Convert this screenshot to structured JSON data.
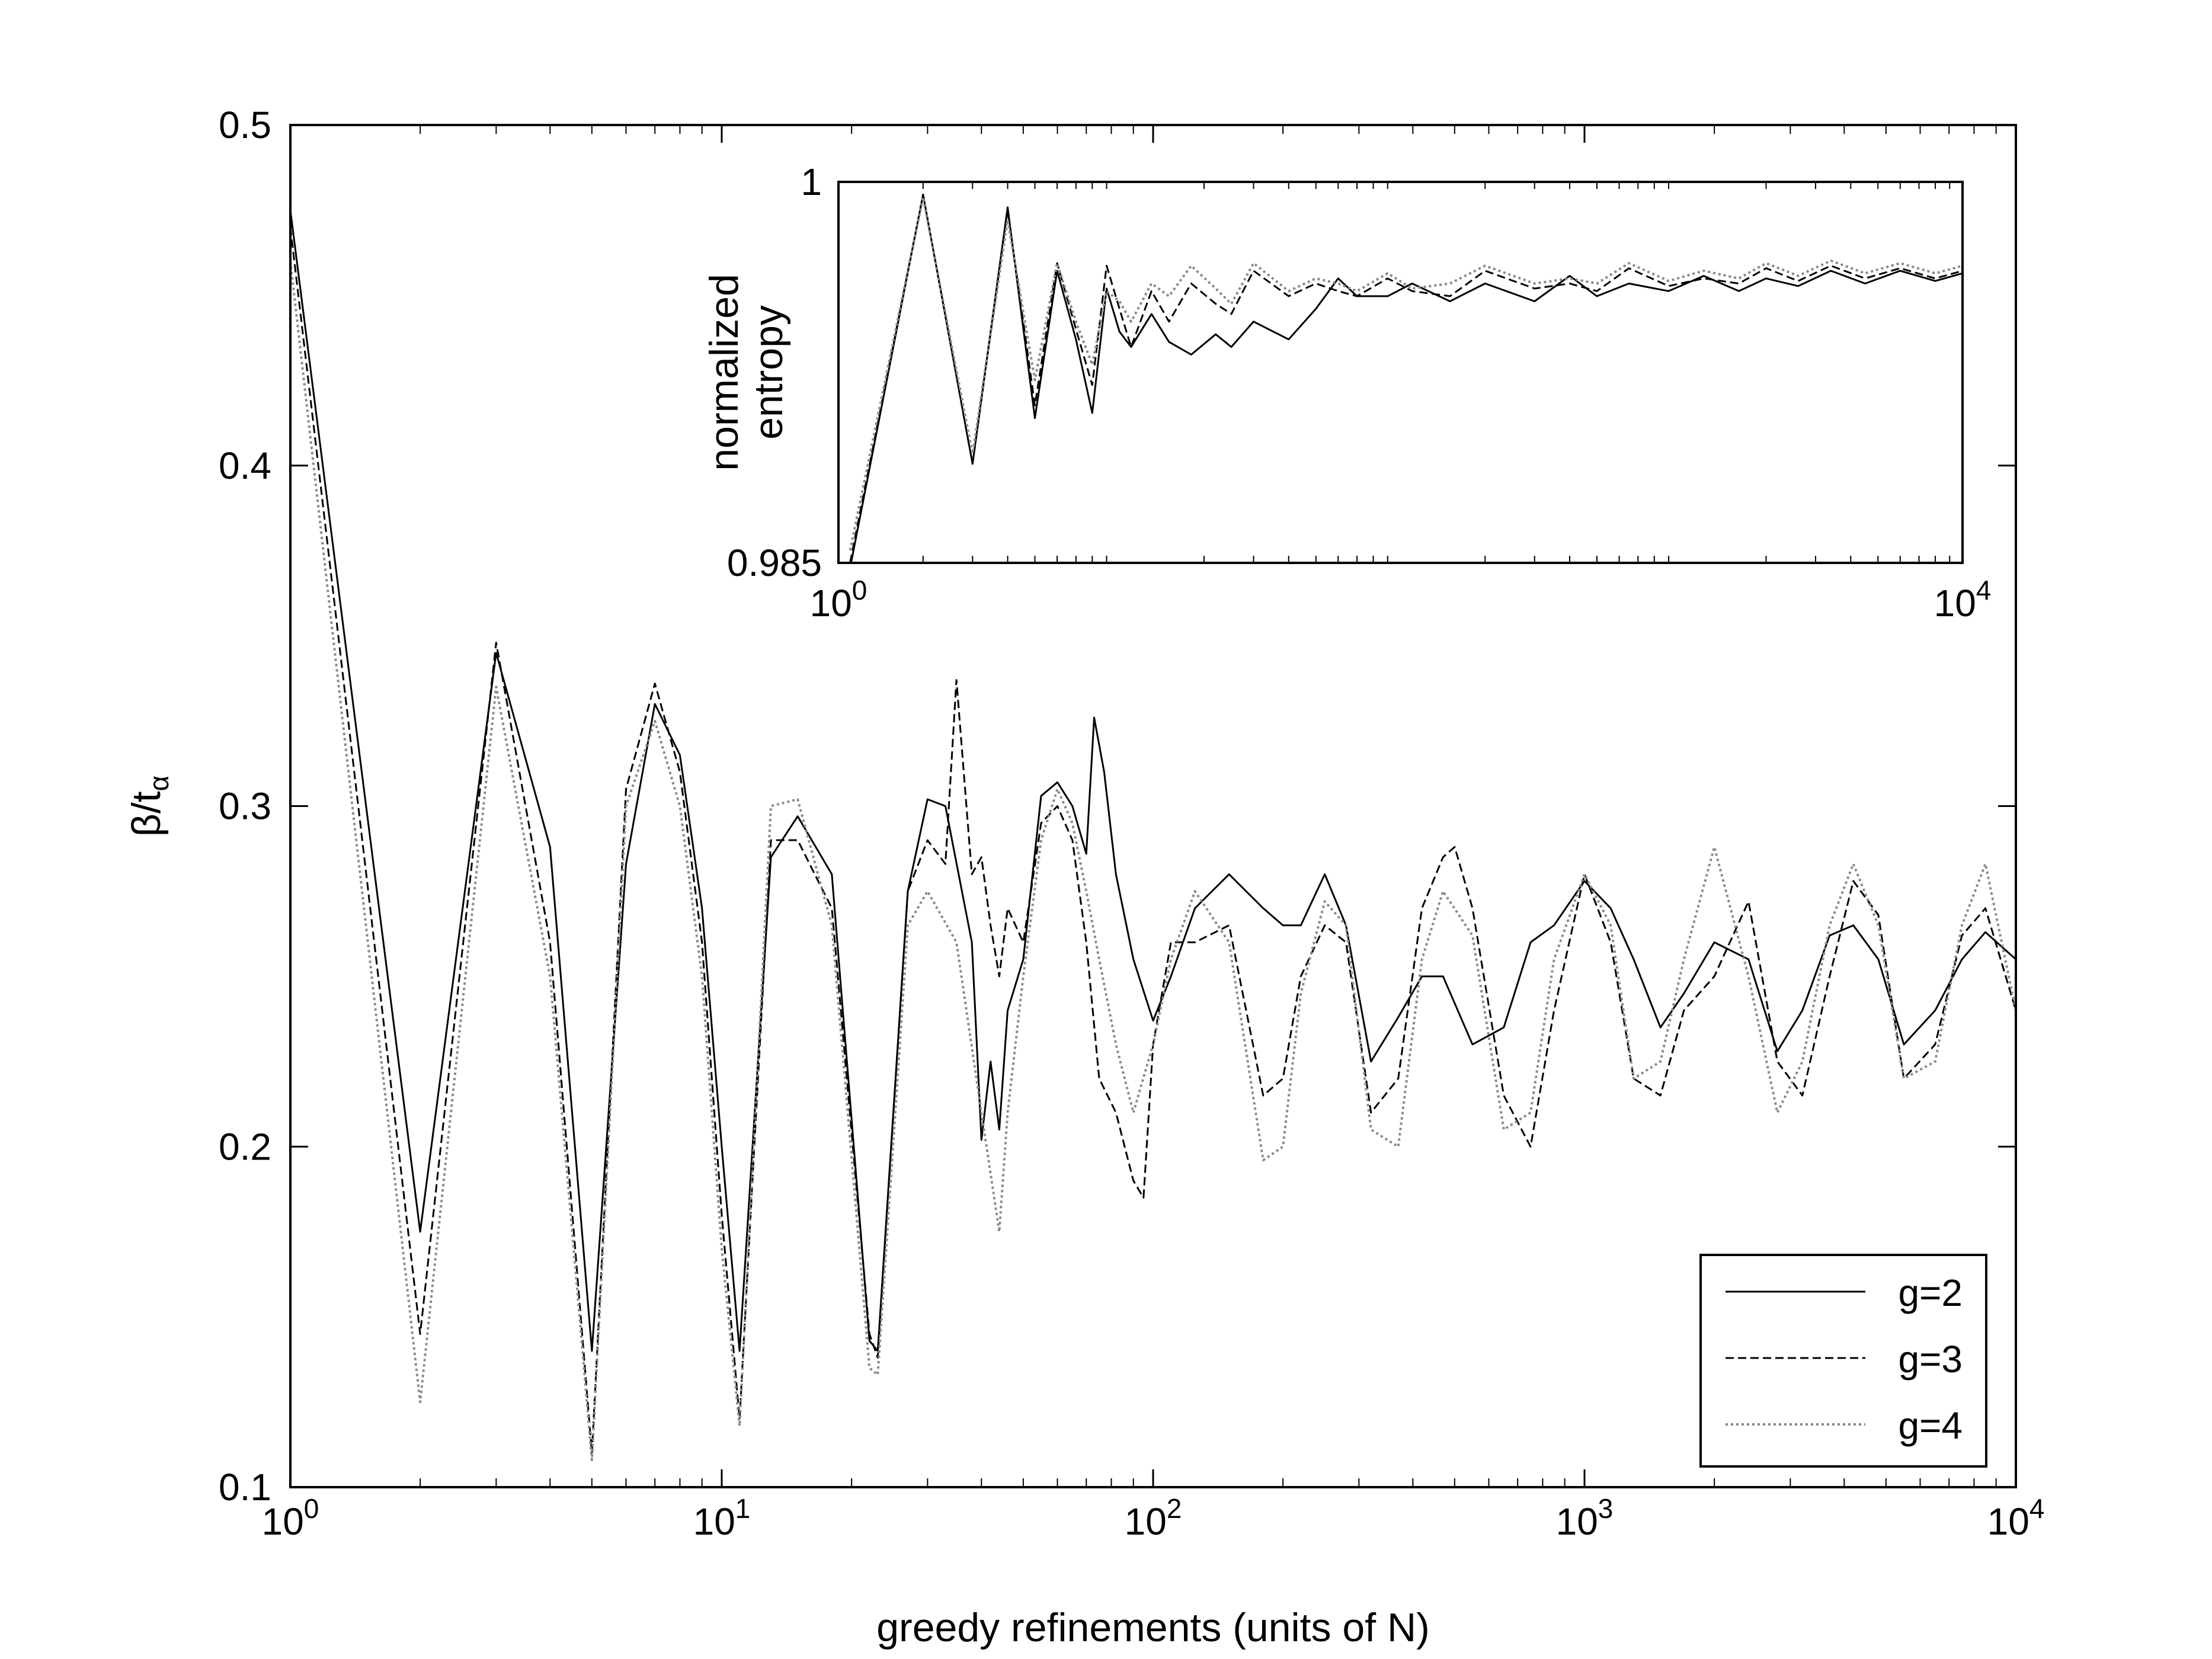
{
  "chart_data": [
    {
      "id": "main",
      "type": "line",
      "title": "",
      "xlabel": "greedy refinements (units of N)",
      "ylabel_base": "β/t",
      "ylabel_subscript": "α",
      "xscale": "log",
      "xlim": [
        1,
        10000
      ],
      "ylim": [
        0.1,
        0.5
      ],
      "xticks": [
        1,
        10,
        100,
        1000,
        10000
      ],
      "xtick_labels": [
        {
          "base": "10",
          "exp": "0"
        },
        {
          "base": "10",
          "exp": "1"
        },
        {
          "base": "10",
          "exp": "2"
        },
        {
          "base": "10",
          "exp": "3"
        },
        {
          "base": "10",
          "exp": "4"
        }
      ],
      "yticks": [
        0.1,
        0.2,
        0.3,
        0.4,
        0.5
      ],
      "ytick_labels": [
        "0.1",
        "0.2",
        "0.3",
        "0.4",
        "0.5"
      ],
      "grid": false,
      "legend_position": "bottom-right",
      "series": [
        {
          "name": "g=2",
          "style": "solid",
          "color": "#000000",
          "x": [
            1,
            2,
            3,
            4,
            5,
            6,
            7,
            8,
            9,
            10,
            11,
            13,
            15,
            18,
            22,
            23,
            27,
            30,
            33,
            38,
            40,
            42,
            44,
            46,
            50,
            55,
            60,
            65,
            70,
            73,
            77,
            82,
            90,
            100,
            110,
            125,
            150,
            180,
            200,
            220,
            250,
            280,
            320,
            370,
            420,
            470,
            550,
            650,
            750,
            850,
            1000,
            1150,
            1300,
            1500,
            1700,
            2000,
            2400,
            2800,
            3200,
            3700,
            4200,
            4800,
            5500,
            6500,
            7500,
            8500,
            10000
          ],
          "y": [
            0.475,
            0.175,
            0.345,
            0.288,
            0.14,
            0.283,
            0.33,
            0.315,
            0.27,
            0.2,
            0.14,
            0.285,
            0.297,
            0.28,
            0.143,
            0.14,
            0.275,
            0.302,
            0.3,
            0.26,
            0.202,
            0.225,
            0.205,
            0.24,
            0.255,
            0.303,
            0.307,
            0.3,
            0.286,
            0.326,
            0.31,
            0.28,
            0.255,
            0.237,
            0.25,
            0.27,
            0.28,
            0.27,
            0.265,
            0.265,
            0.28,
            0.265,
            0.225,
            0.238,
            0.25,
            0.25,
            0.23,
            0.235,
            0.26,
            0.265,
            0.278,
            0.27,
            0.255,
            0.235,
            0.245,
            0.26,
            0.255,
            0.228,
            0.24,
            0.262,
            0.265,
            0.255,
            0.23,
            0.24,
            0.255,
            0.263,
            0.255
          ]
        },
        {
          "name": "g=3",
          "style": "dashed",
          "color": "#000000",
          "x": [
            1,
            2,
            3,
            4,
            5,
            6,
            7,
            8,
            9,
            10,
            11,
            13,
            15,
            18,
            22,
            23,
            27,
            30,
            33,
            35,
            38,
            40,
            42,
            44,
            46,
            50,
            55,
            60,
            65,
            70,
            75,
            82,
            90,
            95,
            100,
            110,
            125,
            150,
            180,
            200,
            220,
            250,
            280,
            320,
            370,
            420,
            470,
            500,
            550,
            650,
            750,
            850,
            1000,
            1150,
            1300,
            1500,
            1700,
            2000,
            2400,
            2800,
            3200,
            3700,
            4200,
            4800,
            5500,
            6500,
            7500,
            8500,
            10000
          ],
          "y": [
            0.47,
            0.145,
            0.348,
            0.26,
            0.11,
            0.305,
            0.336,
            0.31,
            0.26,
            0.18,
            0.12,
            0.29,
            0.29,
            0.27,
            0.145,
            0.138,
            0.275,
            0.29,
            0.283,
            0.337,
            0.28,
            0.285,
            0.265,
            0.25,
            0.27,
            0.26,
            0.295,
            0.3,
            0.29,
            0.26,
            0.22,
            0.21,
            0.19,
            0.185,
            0.23,
            0.26,
            0.26,
            0.265,
            0.215,
            0.22,
            0.25,
            0.265,
            0.26,
            0.21,
            0.22,
            0.27,
            0.285,
            0.288,
            0.27,
            0.215,
            0.2,
            0.24,
            0.28,
            0.26,
            0.22,
            0.215,
            0.24,
            0.25,
            0.272,
            0.225,
            0.215,
            0.25,
            0.278,
            0.268,
            0.22,
            0.23,
            0.262,
            0.27,
            0.24
          ]
        },
        {
          "name": "g=4",
          "style": "dotted",
          "color": "#888888",
          "x": [
            1,
            2,
            3,
            4,
            5,
            6,
            7,
            8,
            9,
            10,
            11,
            13,
            15,
            18,
            22,
            23,
            27,
            30,
            35,
            40,
            44,
            46,
            50,
            55,
            60,
            65,
            70,
            75,
            82,
            90,
            100,
            110,
            125,
            150,
            180,
            200,
            220,
            250,
            280,
            320,
            370,
            420,
            470,
            550,
            650,
            750,
            850,
            1000,
            1150,
            1300,
            1500,
            1700,
            2000,
            2400,
            2800,
            3200,
            3700,
            4200,
            4800,
            5500,
            6500,
            7500,
            8500,
            10000
          ],
          "y": [
            0.46,
            0.125,
            0.335,
            0.25,
            0.108,
            0.3,
            0.325,
            0.3,
            0.25,
            0.17,
            0.118,
            0.3,
            0.302,
            0.265,
            0.135,
            0.133,
            0.265,
            0.275,
            0.26,
            0.21,
            0.175,
            0.21,
            0.25,
            0.29,
            0.305,
            0.295,
            0.275,
            0.255,
            0.23,
            0.21,
            0.23,
            0.255,
            0.275,
            0.26,
            0.196,
            0.2,
            0.245,
            0.272,
            0.265,
            0.205,
            0.2,
            0.255,
            0.275,
            0.262,
            0.205,
            0.21,
            0.255,
            0.28,
            0.265,
            0.22,
            0.225,
            0.255,
            0.288,
            0.25,
            0.21,
            0.225,
            0.265,
            0.283,
            0.265,
            0.22,
            0.225,
            0.265,
            0.283,
            0.24
          ]
        }
      ]
    },
    {
      "id": "inset",
      "type": "line",
      "title": "",
      "xlabel": "",
      "ylabel_line1": "normalized",
      "ylabel_line2": "entropy",
      "xscale": "log",
      "xlim": [
        1,
        10000
      ],
      "ylim": [
        0.985,
        1.0
      ],
      "xticks": [
        1,
        10000
      ],
      "xtick_labels": [
        {
          "base": "10",
          "exp": "0"
        },
        {
          "base": "10",
          "exp": "4"
        }
      ],
      "yticks": [
        0.985,
        1.0
      ],
      "ytick_labels": [
        "0.985",
        "1"
      ],
      "grid": false,
      "series": [
        {
          "name": "g=2",
          "style": "solid",
          "color": "#000000",
          "x": [
            1.1,
            2,
            3,
            4,
            5,
            6,
            7,
            8,
            9,
            10,
            11,
            13,
            15,
            18,
            22,
            25,
            30,
            40,
            50,
            60,
            70,
            90,
            110,
            150,
            200,
            300,
            400,
            500,
            650,
            900,
            1200,
            1600,
            2000,
            2600,
            3400,
            4500,
            6000,
            8000,
            10000
          ],
          "y": [
            0.9848,
            0.9995,
            0.9889,
            0.999,
            0.9907,
            0.9965,
            0.9938,
            0.9909,
            0.9958,
            0.9941,
            0.9935,
            0.9948,
            0.9937,
            0.9932,
            0.994,
            0.9935,
            0.9945,
            0.9938,
            0.995,
            0.9962,
            0.9955,
            0.9955,
            0.996,
            0.9953,
            0.996,
            0.9953,
            0.9963,
            0.9955,
            0.996,
            0.9957,
            0.9963,
            0.9957,
            0.9962,
            0.9959,
            0.9965,
            0.996,
            0.9965,
            0.9961,
            0.9964
          ]
        },
        {
          "name": "g=3",
          "style": "dashed",
          "color": "#000000",
          "x": [
            1.1,
            2,
            3,
            4,
            5,
            6,
            7,
            8,
            9,
            10,
            11,
            13,
            15,
            18,
            22,
            25,
            30,
            40,
            50,
            60,
            70,
            90,
            110,
            150,
            200,
            300,
            400,
            500,
            650,
            900,
            1200,
            1600,
            2000,
            2600,
            3400,
            4500,
            6000,
            8000,
            10000
          ],
          "y": [
            0.985,
            0.9995,
            0.9889,
            0.9989,
            0.9912,
            0.9968,
            0.9942,
            0.992,
            0.9967,
            0.995,
            0.9935,
            0.9957,
            0.9945,
            0.996,
            0.9952,
            0.9948,
            0.9965,
            0.9955,
            0.996,
            0.9957,
            0.9955,
            0.9962,
            0.9957,
            0.9955,
            0.9965,
            0.9958,
            0.996,
            0.9957,
            0.9966,
            0.9959,
            0.9962,
            0.996,
            0.9966,
            0.9961,
            0.9967,
            0.9962,
            0.9966,
            0.9962,
            0.9965
          ]
        },
        {
          "name": "g=4",
          "style": "dotted",
          "color": "#888888",
          "x": [
            1.1,
            2,
            3,
            4,
            5,
            6,
            7,
            8,
            9,
            10,
            11,
            13,
            15,
            18,
            22,
            25,
            30,
            40,
            50,
            60,
            70,
            90,
            110,
            150,
            200,
            300,
            400,
            500,
            650,
            900,
            1200,
            1600,
            2000,
            2600,
            3400,
            4500,
            6000,
            8000,
            10000
          ],
          "y": [
            0.9855,
            0.9994,
            0.9893,
            0.9985,
            0.9922,
            0.9968,
            0.9945,
            0.9928,
            0.9957,
            0.9953,
            0.9945,
            0.996,
            0.9955,
            0.9967,
            0.9958,
            0.9952,
            0.9968,
            0.9957,
            0.9962,
            0.996,
            0.9957,
            0.9964,
            0.9958,
            0.996,
            0.9967,
            0.996,
            0.9962,
            0.996,
            0.9968,
            0.9961,
            0.9965,
            0.9962,
            0.9968,
            0.9963,
            0.9969,
            0.9964,
            0.9968,
            0.9964,
            0.9967
          ]
        }
      ]
    }
  ]
}
